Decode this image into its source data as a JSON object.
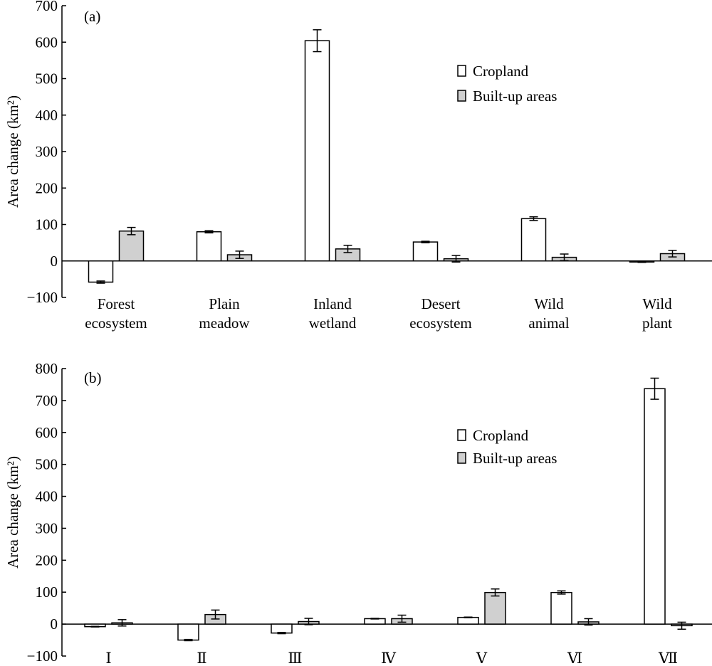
{
  "colors": {
    "cropland_fill": "#ffffff",
    "builtup_fill": "#d0d0d0",
    "stroke": "#000000"
  },
  "chart_data": [
    {
      "type": "bar",
      "panel_label": "(a)",
      "ylabel": "Area change (km²)",
      "ylim": [
        -100,
        700
      ],
      "yticks": [
        -100,
        0,
        100,
        200,
        300,
        400,
        500,
        600,
        700
      ],
      "categories": [
        [
          "Forest",
          "ecosystem"
        ],
        [
          "Plain",
          "meadow"
        ],
        [
          "Inland",
          "wetland"
        ],
        [
          "Desert",
          "ecosystem"
        ],
        [
          "Wild",
          "animal"
        ],
        [
          "Wild",
          "plant"
        ]
      ],
      "legend_position": "upper-right",
      "series": [
        {
          "name": "Cropland",
          "values": [
            -58,
            80,
            604,
            52,
            116,
            -3
          ],
          "errors": [
            3,
            3,
            30,
            2,
            5,
            1
          ]
        },
        {
          "name": "Built-up areas",
          "values": [
            82,
            17,
            33,
            6,
            10,
            20
          ],
          "errors": [
            10,
            10,
            10,
            9,
            9,
            9
          ]
        }
      ]
    },
    {
      "type": "bar",
      "panel_label": "(b)",
      "ylabel": "Area change (km²)",
      "ylim": [
        -100,
        800
      ],
      "yticks": [
        -100,
        0,
        100,
        200,
        300,
        400,
        500,
        600,
        700,
        800
      ],
      "categories": [
        [
          "Ⅰ"
        ],
        [
          "Ⅱ"
        ],
        [
          "Ⅲ"
        ],
        [
          "Ⅳ"
        ],
        [
          "Ⅴ"
        ],
        [
          "Ⅵ"
        ],
        [
          "Ⅶ"
        ]
      ],
      "legend_position": "upper-right",
      "series": [
        {
          "name": "Cropland",
          "values": [
            -8,
            -50,
            -28,
            17,
            21,
            99,
            737
          ],
          "errors": [
            1,
            2,
            2,
            1,
            1,
            5,
            33
          ]
        },
        {
          "name": "Built-up areas",
          "values": [
            4,
            30,
            8,
            17,
            99,
            7,
            -5
          ],
          "errors": [
            10,
            14,
            10,
            11,
            11,
            10,
            11
          ]
        }
      ]
    }
  ]
}
